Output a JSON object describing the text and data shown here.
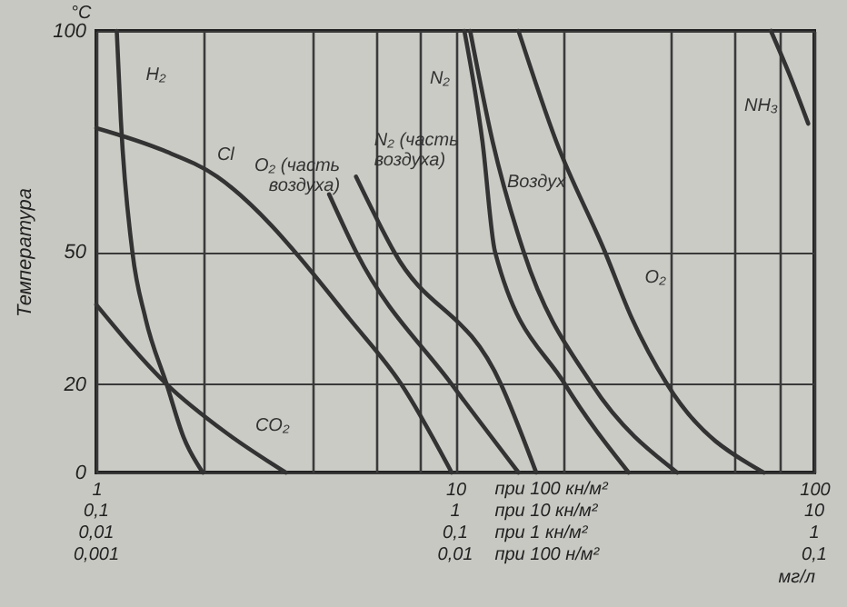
{
  "chart_data": {
    "type": "line",
    "xlabel": "мг/л",
    "ylabel": "Температура",
    "annotations": [
      "°C",
      "при 100 кн/м²",
      "0,1",
      "1",
      "при 10 кн/м²",
      "10",
      "0,01",
      "0,1",
      "при 1 кн/м²",
      "1",
      "0,001",
      "0,01",
      "при 100 н/м²",
      "0,1"
    ],
    "log": "x",
    "xlim": [
      1,
      100
    ],
    "ylim": [
      0,
      100
    ],
    "xticks": [
      1,
      {
        "value": 2,
        "label": null
      },
      {
        "value": 4,
        "label": null
      },
      {
        "value": 6,
        "label": null
      },
      {
        "value": 8,
        "label": null
      },
      10,
      {
        "value": 20,
        "label": null
      },
      {
        "value": 40,
        "label": null
      },
      {
        "value": 60,
        "label": null
      },
      {
        "value": 80,
        "label": null
      },
      100
    ],
    "yticks": [
      0,
      20,
      50,
      100
    ],
    "grid": true,
    "line_style": "solid",
    "series": [
      {
        "name": "H₂",
        "color": "#333333",
        "x": [
          1.14,
          1.17,
          1.26,
          1.37,
          1.57,
          1.75,
          1.98
        ],
        "values": [
          100,
          80,
          50,
          35,
          20,
          8,
          0
        ]
      },
      {
        "name": "Cl",
        "color": "#333333",
        "x": [
          1,
          1.53,
          2.17,
          3.07,
          3.57,
          5.05,
          7.07,
          9.77
        ],
        "values": [
          78,
          73,
          67,
          56,
          50,
          35,
          20,
          0
        ]
      },
      {
        "name": "CO₂",
        "color": "#333333",
        "x": [
          1,
          1.57,
          2.3,
          3.37
        ],
        "values": [
          38,
          20,
          9,
          0
        ]
      },
      {
        "name": "O₂ (часть воздуха)",
        "color": "#333333",
        "x": [
          4.45,
          5.29,
          9.77,
          15.0
        ],
        "values": [
          63,
          50,
          20,
          0
        ]
      },
      {
        "name": "N₂ (часть воздуха)",
        "color": "#333333",
        "x": [
          5.29,
          6.75,
          13.4,
          16.8
        ],
        "values": [
          67,
          50,
          20,
          0
        ]
      },
      {
        "name": "N₂",
        "color": "#333333",
        "x": [
          10.6,
          11.9,
          12.9,
          20.2,
          30.4
        ],
        "values": [
          100,
          75,
          50,
          20,
          0
        ]
      },
      {
        "name": "Воздух",
        "color": "#333333",
        "x": [
          11.0,
          12.7,
          15.5,
          24.0,
          41.5
        ],
        "values": [
          100,
          75,
          50,
          20,
          0
        ]
      },
      {
        "name": "O₂",
        "color": "#333333",
        "x": [
          15.0,
          19.1,
          26.1,
          31.0,
          38.9,
          72.3
        ],
        "values": [
          100,
          75,
          50,
          35,
          20,
          0
        ]
      },
      {
        "name": "NH₃",
        "color": "#333333",
        "x": [
          75.7,
          84.9,
          96.2
        ],
        "values": [
          100,
          90.5,
          79
        ]
      }
    ]
  }
}
